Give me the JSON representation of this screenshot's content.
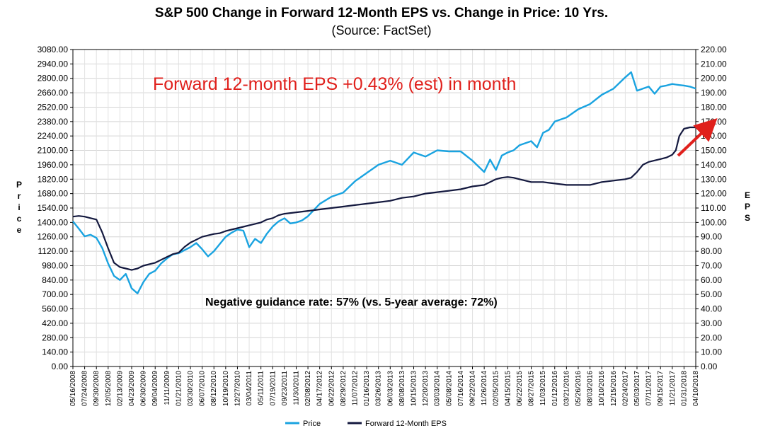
{
  "chart_data": {
    "type": "line",
    "title": "S&P 500 Change in Forward 12-Month EPS vs. Change in Price: 10 Yrs.",
    "subtitle": "(Source: FactSet)",
    "ylabel_left": "Price",
    "ylabel_right": "EPS",
    "ylim_left": [
      0,
      3080
    ],
    "ylim_right": [
      0,
      220
    ],
    "yticks_left": [
      "0.00",
      "140.00",
      "280.00",
      "420.00",
      "560.00",
      "700.00",
      "840.00",
      "980.00",
      "1120.00",
      "1260.00",
      "1400.00",
      "1540.00",
      "1680.00",
      "1820.00",
      "1960.00",
      "2100.00",
      "2240.00",
      "2380.00",
      "2520.00",
      "2660.00",
      "2800.00",
      "2940.00",
      "3080.00"
    ],
    "yticks_right": [
      "0.00",
      "10.00",
      "20.00",
      "30.00",
      "40.00",
      "50.00",
      "60.00",
      "70.00",
      "80.00",
      "90.00",
      "100.00",
      "110.00",
      "120.00",
      "130.00",
      "140.00",
      "150.00",
      "160.00",
      "170.00",
      "180.00",
      "190.00",
      "200.00",
      "210.00",
      "220.00"
    ],
    "xticks": [
      "05/16/2008",
      "07/24/2008",
      "09/30/2008",
      "12/05/2008",
      "02/13/2009",
      "04/23/2009",
      "06/30/2009",
      "09/04/2009",
      "11/11/2009",
      "01/21/2010",
      "03/30/2010",
      "06/07/2010",
      "08/12/2010",
      "10/19/2010",
      "12/27/2010",
      "03/04/2011",
      "05/11/2011",
      "07/19/2011",
      "09/23/2011",
      "11/30/2011",
      "02/08/2012",
      "04/17/2012",
      "06/22/2012",
      "08/29/2012",
      "11/07/2012",
      "01/16/2013",
      "03/26/2013",
      "06/03/2013",
      "08/08/2013",
      "10/15/2013",
      "12/20/2013",
      "03/03/2014",
      "05/08/2014",
      "07/16/2014",
      "09/22/2014",
      "11/26/2014",
      "02/05/2015",
      "04/15/2015",
      "06/22/2015",
      "08/27/2015",
      "11/03/2015",
      "01/12/2016",
      "03/21/2016",
      "05/26/2016",
      "08/03/2016",
      "10/10/2016",
      "12/15/2016",
      "02/24/2017",
      "05/03/2017",
      "07/11/2017",
      "09/15/2017",
      "11/21/2017",
      "01/31/2018",
      "04/10/2018"
    ],
    "series": [
      {
        "name": "Price",
        "axis": "left",
        "color": "#1aa3e0",
        "x": [
          0,
          0.5,
          1,
          1.5,
          2,
          2.5,
          3,
          3.5,
          4,
          4.5,
          5,
          5.5,
          6,
          6.5,
          7,
          7.5,
          8,
          8.5,
          9,
          9.5,
          10,
          10.5,
          11,
          11.5,
          12,
          12.5,
          13,
          13.5,
          14,
          14.5,
          15,
          15.5,
          16,
          16.5,
          17,
          17.5,
          18,
          18.5,
          19,
          19.5,
          20,
          21,
          22,
          23,
          24,
          25,
          26,
          27,
          28,
          29,
          30,
          31,
          32,
          33,
          34,
          35,
          35.5,
          36,
          36.5,
          37,
          37.5,
          38,
          38.5,
          39,
          39.5,
          40,
          40.5,
          41,
          42,
          43,
          44,
          45,
          46,
          47,
          47.5,
          48,
          48.5,
          49,
          49.5,
          50,
          50.5,
          51,
          51.3,
          51.6,
          52,
          52.5,
          53
        ],
        "values": [
          1410,
          1340,
          1265,
          1280,
          1250,
          1150,
          1000,
          880,
          840,
          900,
          760,
          710,
          820,
          900,
          930,
          1000,
          1050,
          1090,
          1100,
          1130,
          1160,
          1200,
          1140,
          1070,
          1120,
          1190,
          1260,
          1300,
          1330,
          1320,
          1160,
          1240,
          1200,
          1290,
          1360,
          1410,
          1440,
          1390,
          1400,
          1420,
          1460,
          1580,
          1650,
          1690,
          1800,
          1880,
          1960,
          2000,
          1960,
          2080,
          2040,
          2100,
          2090,
          2090,
          2000,
          1890,
          2010,
          1910,
          2050,
          2080,
          2100,
          2150,
          2170,
          2190,
          2130,
          2270,
          2300,
          2380,
          2420,
          2500,
          2550,
          2640,
          2700,
          2810,
          2860,
          2680,
          2700,
          2720,
          2650,
          2720,
          2730,
          2745,
          2740,
          2735,
          2730,
          2720,
          2700
        ]
      },
      {
        "name": "Forward 12-Month EPS",
        "axis": "right",
        "color": "#14193f",
        "x": [
          0,
          0.5,
          1,
          1.5,
          2,
          2.5,
          3,
          3.5,
          4,
          4.5,
          5,
          5.5,
          6,
          6.5,
          7,
          7.5,
          8,
          8.5,
          9,
          9.5,
          10,
          10.5,
          11,
          11.5,
          12,
          12.5,
          13,
          13.5,
          14,
          14.5,
          15,
          15.5,
          16,
          16.5,
          17,
          17.5,
          18,
          18.5,
          19,
          19.5,
          20,
          21,
          22,
          23,
          24,
          25,
          26,
          27,
          28,
          29,
          30,
          31,
          32,
          33,
          34,
          35,
          35.5,
          36,
          36.5,
          37,
          37.5,
          38,
          38.5,
          39,
          39.5,
          40,
          40.5,
          41,
          42,
          43,
          44,
          45,
          46,
          47,
          47.5,
          48,
          48.5,
          49,
          49.5,
          50,
          50.5,
          51,
          51.3,
          51.6,
          52,
          52.5,
          53
        ],
        "values": [
          104,
          104.5,
          104,
          103,
          102,
          93,
          82,
          72,
          69,
          68,
          67,
          68,
          70,
          71,
          72,
          74,
          76,
          78,
          79,
          83,
          86,
          88,
          90,
          91,
          92,
          92.5,
          94,
          95,
          96,
          97,
          98,
          99,
          100,
          102,
          103,
          105,
          106,
          106.5,
          107,
          107.5,
          108,
          109,
          110,
          111,
          112,
          113,
          114,
          115,
          117,
          118,
          120,
          121,
          122,
          123,
          125,
          126,
          128,
          130,
          131,
          131.5,
          131,
          130,
          129,
          128,
          128,
          128,
          127.5,
          127,
          126,
          126,
          126,
          128,
          129,
          130,
          131,
          135,
          140,
          142,
          143,
          144,
          145,
          147,
          150,
          160,
          165,
          166,
          166
        ]
      }
    ],
    "annotations": {
      "eps_change": "Forward 12-month EPS +0.43% (est) in month",
      "guidance": "Negative guidance rate: 57% (vs. 5-year average: 72%)"
    },
    "legend_position": "bottom-center"
  }
}
